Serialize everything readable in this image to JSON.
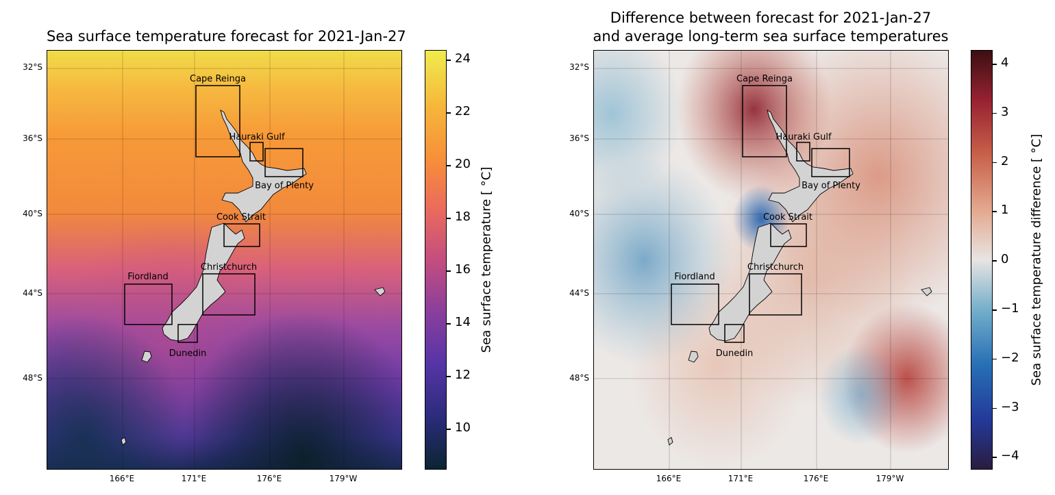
{
  "left": {
    "title": "Sea surface temperature forecast for 2021-Jan-27",
    "colorbar_label": "Sea surface temperature [ $^\\circ$C]",
    "colorbar_label_display": "Sea surface temperature [ °C]",
    "colorbar_ticks": [
      "24",
      "22",
      "20",
      "18",
      "16",
      "14",
      "12",
      "10"
    ],
    "colormap": [
      "#0b2530",
      "#2a2b7a",
      "#5535a6",
      "#8c3f9c",
      "#c44e7f",
      "#ea6a5d",
      "#f78f3a",
      "#f6b43a",
      "#f0e14a"
    ]
  },
  "right": {
    "title_line1": "Difference between forecast for 2021-Jan-27",
    "title_line2": "and average long-term sea surface temperatures",
    "colorbar_label": "Sea surface temperature difference [ °C]",
    "colorbar_ticks": [
      "4",
      "3",
      "2",
      "1",
      "0",
      "−1",
      "−2",
      "−3",
      "−4"
    ],
    "colormap": [
      "#2a1c3f",
      "#233a9b",
      "#2770b5",
      "#74aecb",
      "#e8e4e2",
      "#e3a88e",
      "#c9614a",
      "#982232",
      "#3c0f12"
    ]
  },
  "axes": {
    "lat_labels": [
      "32°S",
      "36°S",
      "40°S",
      "44°S",
      "48°S"
    ],
    "lon_labels": [
      "166°E",
      "171°E",
      "176°E",
      "179°W"
    ]
  },
  "regions": {
    "cape_reinga": "Cape Reinga",
    "hauraki_gulf": "Hauraki Gulf",
    "bay_of_plenty": "Bay of Plenty",
    "cook_strait": "Cook Strait",
    "christchurch": "Christchurch",
    "fiordland": "Fiordland",
    "dunedin": "Dunedin"
  }
}
